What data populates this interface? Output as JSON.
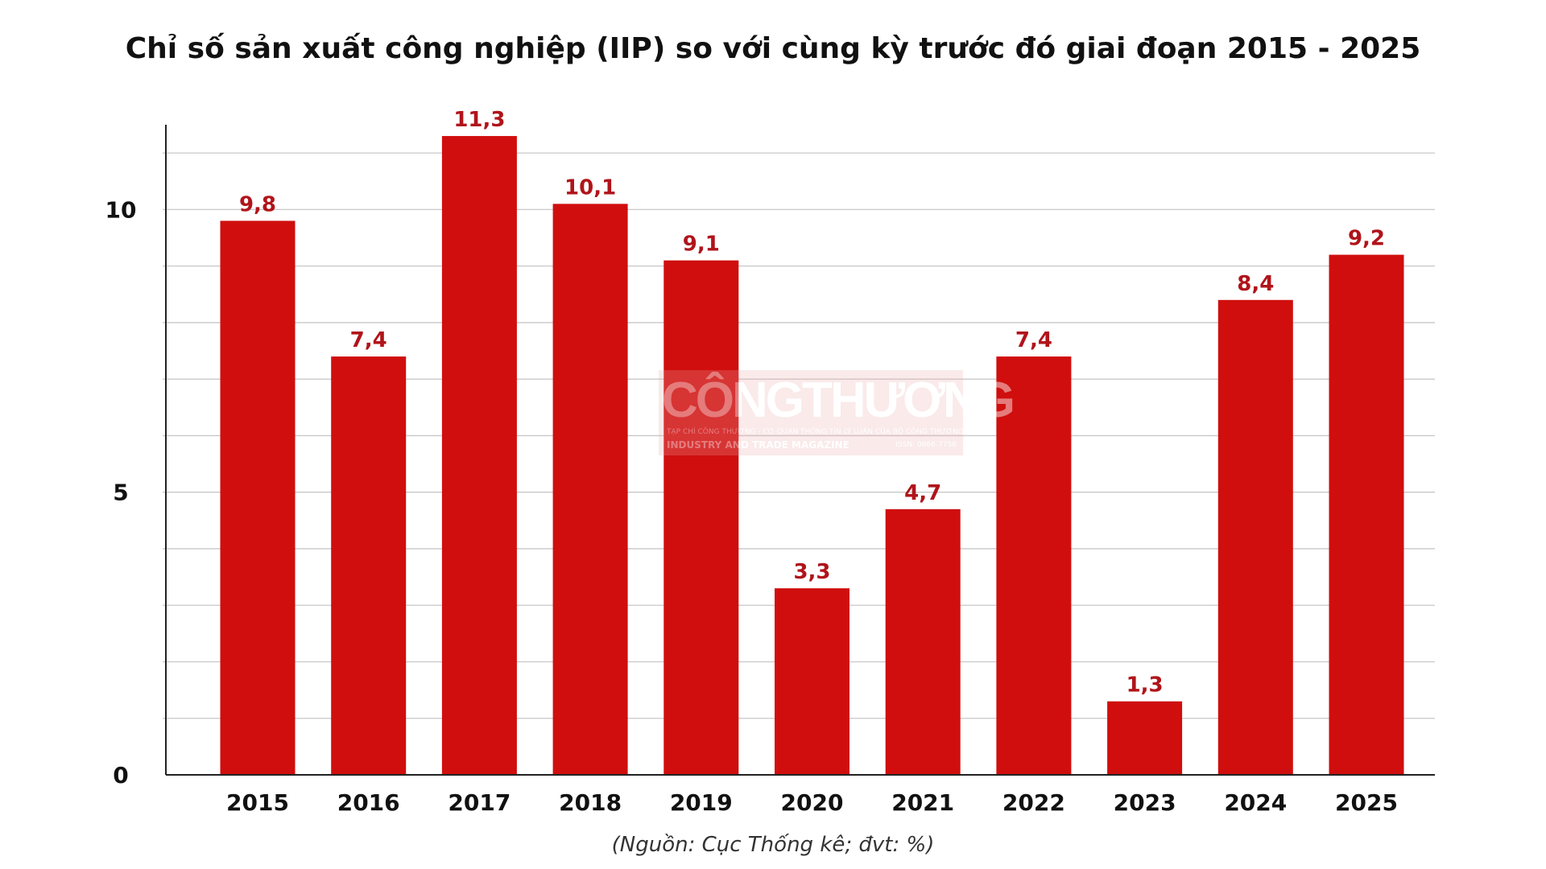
{
  "chart_data": {
    "type": "bar",
    "title": "Chỉ số sản xuất công nghiệp (IIP) so với cùng kỳ trước đó giai đoạn 2015 - 2025",
    "categories": [
      "2015",
      "2016",
      "2017",
      "2018",
      "2019",
      "2020",
      "2021",
      "2022",
      "2023",
      "2024",
      "2025"
    ],
    "values": [
      9.8,
      7.4,
      11.3,
      10.1,
      9.1,
      3.3,
      4.7,
      7.4,
      1.3,
      8.4,
      9.2
    ],
    "value_labels": [
      "9,8",
      "7,4",
      "11,3",
      "10,1",
      "9,1",
      "3,3",
      "4,7",
      "7,4",
      "1,3",
      "8,4",
      "9,2"
    ],
    "ylim": [
      0,
      11.5
    ],
    "yticks": [
      0,
      5,
      10
    ],
    "ytick_labels": [
      "0",
      "5",
      "10"
    ],
    "minor_gridlines": [
      1,
      2,
      3,
      4,
      6,
      7,
      8,
      9,
      11
    ],
    "grid": true,
    "xlabel": "",
    "ylabel": "",
    "bar_color": "#d00e0e",
    "label_color": "#b0141a"
  },
  "source_note": "(Nguồn: Cục Thống kê; đvt: %)",
  "watermark": {
    "brand": "CÔNGTHƯƠNG",
    "subtitle": "TẠP CHÍ CÔNG THƯƠNG - CƠ QUAN THÔNG TIN LÝ LUẬN CỦA BỘ CÔNG THƯƠNG",
    "english": "INDUSTRY AND TRADE MAGAZINE",
    "issn": "ISSN: 0866-7756"
  }
}
